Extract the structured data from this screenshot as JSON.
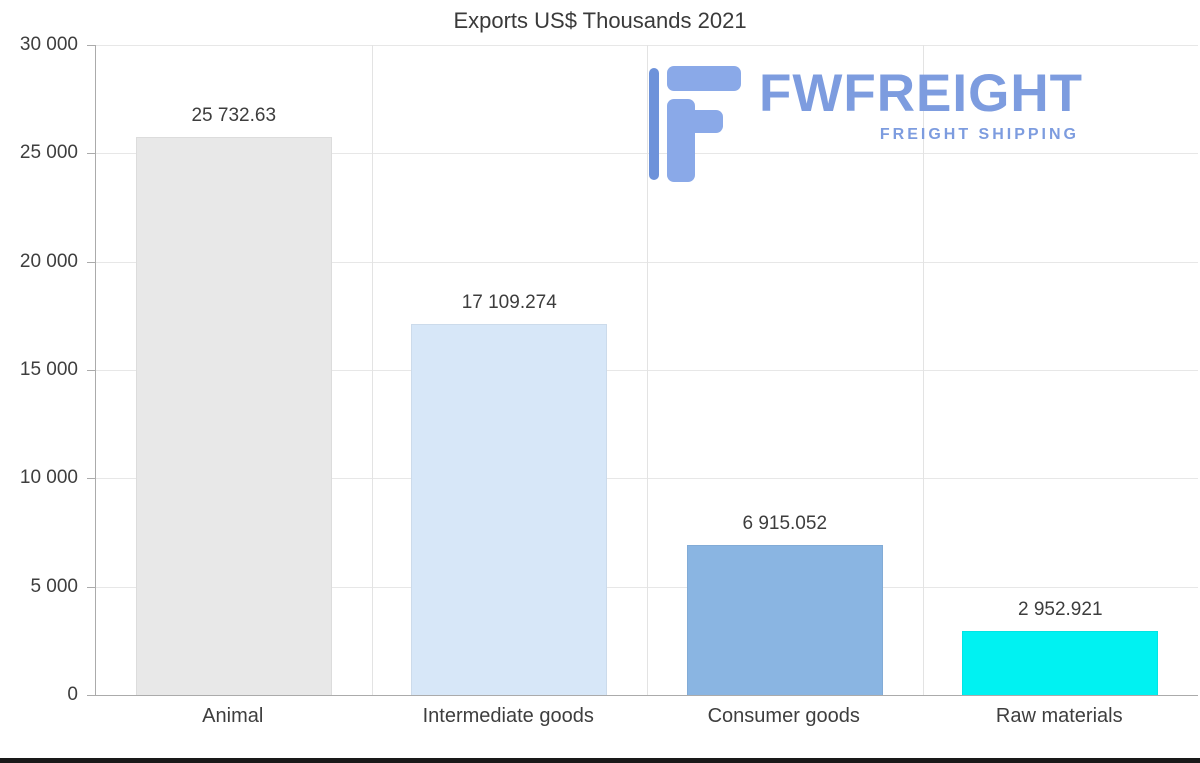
{
  "chart_data": {
    "type": "bar",
    "title": "Exports US$ Thousands 2021",
    "categories": [
      "Animal",
      "Intermediate goods",
      "Consumer goods",
      "Raw materials"
    ],
    "values": [
      25732.63,
      17109.274,
      6915.052,
      2952.921
    ],
    "value_labels": [
      "25 732.63",
      "17 109.274",
      "6 915.052",
      "2 952.921"
    ],
    "bar_colors": [
      "#e8e8e8",
      "#d7e7f8",
      "#8ab5e2",
      "#00f2f2"
    ],
    "xlabel": "",
    "ylabel": "",
    "ylim": [
      0,
      30000
    ],
    "y_ticks": [
      {
        "value": 0,
        "label": "0"
      },
      {
        "value": 5000,
        "label": "5 000"
      },
      {
        "value": 10000,
        "label": "10 000"
      },
      {
        "value": 15000,
        "label": "15 000"
      },
      {
        "value": 20000,
        "label": "20 000"
      },
      {
        "value": 25000,
        "label": "25 000"
      },
      {
        "value": 30000,
        "label": "30 000"
      }
    ],
    "grid": "horizontal gridlines at each y tick, vertical separators between category bands",
    "legend": "none"
  },
  "logo": {
    "brand": "FWFREIGHT",
    "tagline": "FREIGHT SHIPPING",
    "color": "#7d9cdf",
    "icon_color": "#8aa9e8",
    "icon_accent_color": "#6d92da"
  }
}
